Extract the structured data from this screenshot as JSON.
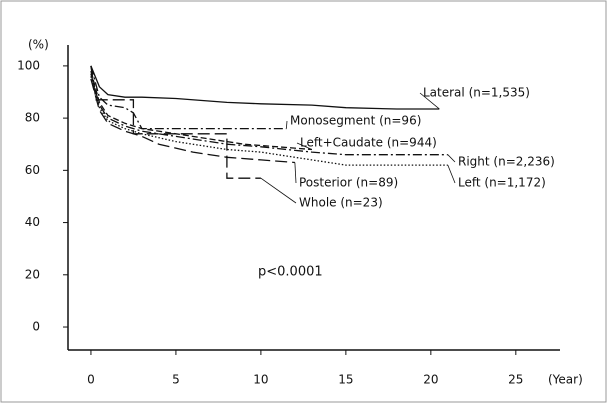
{
  "chart_data": {
    "type": "line",
    "y_axis_label": "(%)",
    "x_axis_label": "(Year)",
    "annotation": "p<0.0001",
    "xlim": [
      -1.35,
      27.6
    ],
    "ylim": [
      -8.8,
      108
    ],
    "xticks": [
      0,
      5,
      10,
      15,
      20,
      25
    ],
    "yticks": [
      0,
      20,
      40,
      60,
      80,
      100
    ],
    "color": "#111111",
    "series": [
      {
        "name": "Lateral (n=1,535)",
        "dash": "solid",
        "x": [
          0,
          0.5,
          1,
          2,
          3,
          5,
          8,
          10,
          13,
          15,
          18,
          20.5
        ],
        "values": [
          100,
          92,
          89,
          88,
          88,
          87.5,
          86,
          85.5,
          85,
          84,
          83.5,
          83.5
        ]
      },
      {
        "name": "Monosegment (n=96)",
        "dash": "dashdot",
        "x": [
          0,
          0.5,
          1,
          2,
          2.5,
          3,
          8,
          11.5
        ],
        "values": [
          100,
          88,
          85,
          84,
          82,
          76,
          76,
          76
        ]
      },
      {
        "name": "Left+Caudate (n=944)",
        "dash": "dashed",
        "x": [
          0,
          0.5,
          1,
          2,
          3,
          5,
          7,
          9,
          11,
          13
        ],
        "values": [
          98,
          86,
          81,
          78,
          76,
          74,
          72,
          70,
          69,
          68
        ]
      },
      {
        "name": "Right (n=2,236)",
        "dash": "dashdot",
        "x": [
          0,
          0.5,
          1,
          2,
          3,
          5,
          8,
          10,
          13,
          15,
          18,
          21
        ],
        "values": [
          97,
          85,
          80,
          77,
          75,
          73,
          70,
          69,
          67,
          66,
          66,
          66
        ]
      },
      {
        "name": "Left (n=1,172)",
        "dash": "dotted",
        "x": [
          0,
          0.5,
          1,
          2,
          3,
          5,
          8,
          10,
          13,
          15,
          18,
          21
        ],
        "values": [
          96,
          84,
          79,
          76,
          74,
          71,
          68,
          67,
          64,
          62,
          62,
          62
        ]
      },
      {
        "name": "Posterior (n=89)",
        "dash": "longdash",
        "x": [
          0,
          0.5,
          1,
          2,
          3,
          4,
          6,
          8,
          10,
          12
        ],
        "values": [
          95,
          83,
          78,
          75,
          73,
          70,
          67,
          65,
          64,
          63
        ]
      },
      {
        "name": "Whole (n=23)",
        "dash": "longdash",
        "x": [
          0,
          0.3,
          2.5,
          2.5,
          8,
          8,
          10
        ],
        "values": [
          100,
          87,
          87,
          74,
          74,
          57,
          57
        ]
      }
    ]
  }
}
